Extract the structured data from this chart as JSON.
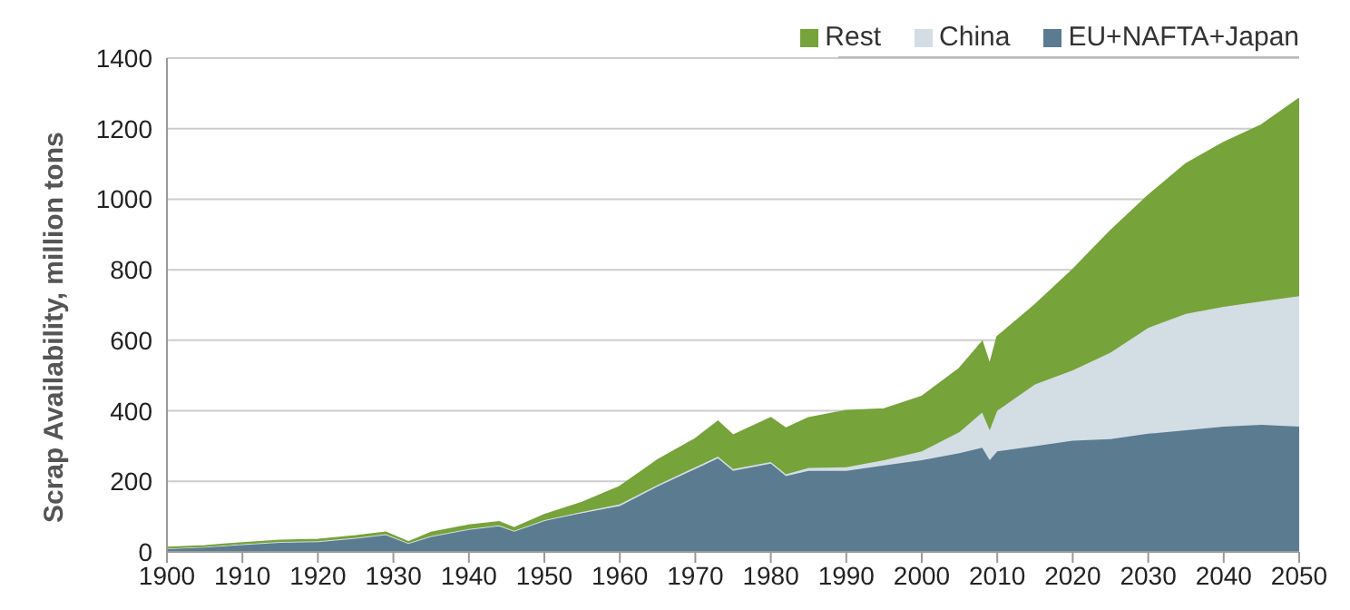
{
  "chart_data": {
    "type": "area",
    "stacked": true,
    "ylabel": "Scrap Availability, million tons",
    "x": [
      1900,
      1905,
      1910,
      1915,
      1920,
      1925,
      1929,
      1932,
      1935,
      1940,
      1944,
      1946,
      1950,
      1955,
      1960,
      1965,
      1970,
      1973,
      1975,
      1980,
      1982,
      1985,
      1990,
      1995,
      2000,
      2005,
      2008,
      2009,
      2010,
      2015,
      2020,
      2025,
      2030,
      2035,
      2040,
      2045,
      2050
    ],
    "series": [
      {
        "name": "EU+NAFTA+Japan",
        "color": "#5b7b91",
        "values": [
          10,
          15,
          22,
          28,
          30,
          40,
          50,
          25,
          45,
          65,
          75,
          60,
          90,
          110,
          130,
          185,
          235,
          265,
          230,
          250,
          215,
          230,
          230,
          245,
          260,
          280,
          295,
          260,
          285,
          300,
          315,
          320,
          335,
          345,
          355,
          360,
          355
        ]
      },
      {
        "name": "China",
        "color": "#d3dde4",
        "values": [
          0,
          0,
          0,
          0,
          0,
          0,
          0,
          0,
          0,
          0,
          0,
          0,
          0,
          3,
          5,
          5,
          5,
          5,
          5,
          5,
          5,
          8,
          10,
          15,
          25,
          60,
          100,
          85,
          115,
          175,
          200,
          245,
          300,
          330,
          340,
          350,
          370
        ]
      },
      {
        "name": "Rest",
        "color": "#76a33a",
        "values": [
          2,
          2,
          3,
          4,
          5,
          5,
          5,
          3,
          10,
          10,
          10,
          8,
          15,
          27,
          50,
          70,
          80,
          100,
          95,
          125,
          130,
          142,
          160,
          145,
          155,
          180,
          200,
          185,
          210,
          225,
          285,
          345,
          375,
          425,
          465,
          500,
          560
        ]
      }
    ],
    "xlim": [
      1900,
      2050
    ],
    "xticks": [
      1900,
      1910,
      1920,
      1930,
      1940,
      1950,
      1960,
      1970,
      1980,
      1990,
      2000,
      2010,
      2020,
      2030,
      2040,
      2050
    ],
    "ylim": [
      0,
      1400
    ],
    "yticks": [
      0,
      200,
      400,
      600,
      800,
      1000,
      1200,
      1400
    ],
    "grid": "y",
    "legend": "top right"
  }
}
